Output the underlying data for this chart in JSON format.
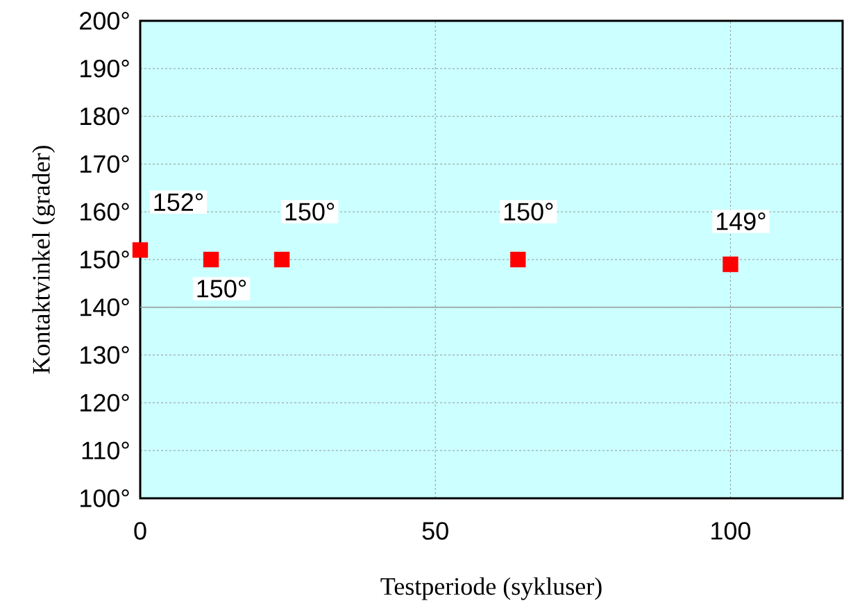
{
  "chart_data": {
    "type": "scatter",
    "xlabel": "Testperiode (sykluser)",
    "ylabel": "Kontaktvinkel (grader)",
    "x": [
      0,
      12,
      24,
      64,
      100
    ],
    "values": [
      152,
      150,
      150,
      150,
      149
    ],
    "value_labels": [
      "152°",
      "150°",
      "150°",
      "150°",
      "149°"
    ],
    "color": "#ff0000",
    "marker": "square",
    "grid": true,
    "xlim": [
      0,
      119
    ],
    "xticks": [
      0,
      50,
      100
    ],
    "ylim": [
      100,
      200
    ],
    "yticks": [
      {
        "value": 100,
        "label": "100°"
      },
      {
        "value": 110,
        "label": "110°"
      },
      {
        "value": 120,
        "label": "120°"
      },
      {
        "value": 130,
        "label": "130°"
      },
      {
        "value": 140,
        "label": "140°"
      },
      {
        "value": 150,
        "label": "150°"
      },
      {
        "value": 160,
        "label": "160°"
      },
      {
        "value": 170,
        "label": "170°"
      },
      {
        "value": 180,
        "label": "180°"
      },
      {
        "value": 190,
        "label": "190°"
      },
      {
        "value": 200,
        "label": "200°"
      }
    ],
    "ref_lines": [
      {
        "axis": "y",
        "value": 140,
        "color": "#999999"
      }
    ]
  }
}
